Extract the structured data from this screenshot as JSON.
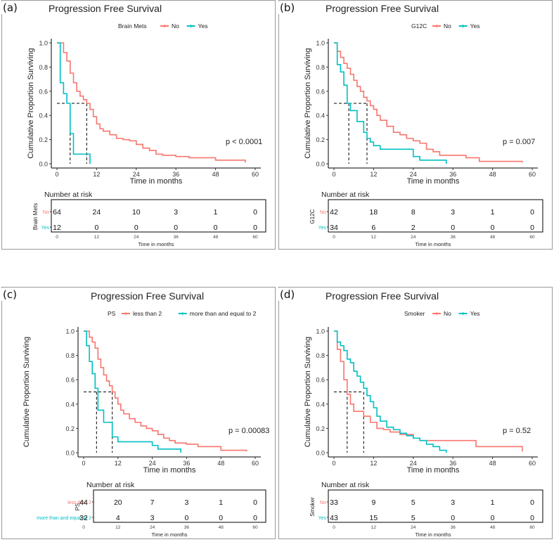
{
  "colors": {
    "no": "#f8766d",
    "yes": "#00bfc4",
    "axis": "#000000",
    "ink": "#222222"
  },
  "chart_data": [
    {
      "type": "line",
      "panel_label": "(a)",
      "title": "Progression Free Survival",
      "legend": {
        "title": "Brain Mets",
        "position": "top",
        "entries": [
          "No",
          "Yes"
        ]
      },
      "xlabel": "Time in months",
      "ylabel": "Cumulative Proportion Surviving",
      "xlim": [
        0,
        60
      ],
      "ylim": [
        0,
        1
      ],
      "xticks": [
        "0",
        "12",
        "24",
        "36",
        "48",
        "60"
      ],
      "yticks": [
        "0.0",
        "0.2",
        "0.4",
        "0.6",
        "0.8",
        "1.0"
      ],
      "pvalue": "p < 0.0001",
      "median_line": {
        "y": 0.5,
        "x": [
          4,
          9
        ]
      },
      "series": [
        {
          "name": "No",
          "color": "#f8766d",
          "x": [
            0,
            2,
            3,
            4,
            5,
            6,
            7,
            8,
            9,
            10,
            11,
            12,
            13,
            14,
            16,
            18,
            20,
            22,
            24,
            26,
            28,
            30,
            32,
            36,
            40,
            48,
            57
          ],
          "y": [
            1,
            0.92,
            0.85,
            0.75,
            0.67,
            0.6,
            0.56,
            0.53,
            0.5,
            0.45,
            0.39,
            0.33,
            0.29,
            0.27,
            0.24,
            0.21,
            0.2,
            0.19,
            0.16,
            0.13,
            0.11,
            0.08,
            0.07,
            0.06,
            0.05,
            0.03,
            0.01
          ]
        },
        {
          "name": "Yes",
          "color": "#00bfc4",
          "x": [
            0,
            1,
            2,
            3,
            4,
            5,
            10
          ],
          "y": [
            1,
            0.67,
            0.58,
            0.5,
            0.25,
            0.08,
            0
          ]
        }
      ],
      "risk_table": {
        "title": "Number at risk",
        "strata_label": "Brain Mets",
        "rows": [
          {
            "label": "No",
            "values": [
              "64",
              "24",
              "10",
              "3",
              "1",
              "0"
            ]
          },
          {
            "label": "Yes",
            "values": [
              "12",
              "0",
              "0",
              "0",
              "0",
              "0"
            ]
          }
        ],
        "xticks": [
          "0",
          "12",
          "24",
          "36",
          "48",
          "60"
        ],
        "xlabel": "Time in months"
      }
    },
    {
      "type": "line",
      "panel_label": "(b)",
      "title": "Progression Free Survival",
      "legend": {
        "title": "G12C",
        "position": "top",
        "entries": [
          "No",
          "Yes"
        ]
      },
      "xlabel": "Time in months",
      "ylabel": "Cumulative Proportion Surviving",
      "xlim": [
        0,
        60
      ],
      "ylim": [
        0,
        1
      ],
      "xticks": [
        "0",
        "12",
        "24",
        "36",
        "48",
        "60"
      ],
      "yticks": [
        "0.0",
        "0.2",
        "0.4",
        "0.6",
        "0.8",
        "1.0"
      ],
      "pvalue": "p = 0.007",
      "median_line": {
        "y": 0.5,
        "x": [
          4.5,
          10
        ]
      },
      "series": [
        {
          "name": "No",
          "color": "#f8766d",
          "x": [
            0,
            1,
            2,
            3,
            4,
            5,
            6,
            7,
            8,
            9,
            10,
            11,
            12,
            13,
            14,
            16,
            18,
            20,
            22,
            24,
            26,
            28,
            30,
            32,
            36,
            40,
            44,
            57
          ],
          "y": [
            1,
            0.93,
            0.88,
            0.83,
            0.79,
            0.74,
            0.69,
            0.64,
            0.6,
            0.55,
            0.52,
            0.48,
            0.45,
            0.4,
            0.36,
            0.31,
            0.26,
            0.24,
            0.21,
            0.19,
            0.17,
            0.12,
            0.1,
            0.07,
            0.07,
            0.05,
            0.02,
            0.01
          ]
        },
        {
          "name": "Yes",
          "color": "#00bfc4",
          "x": [
            0,
            1,
            2,
            3,
            4,
            5,
            7,
            9,
            10,
            11,
            12,
            14,
            16,
            22,
            24,
            26,
            34
          ],
          "y": [
            1,
            0.82,
            0.76,
            0.65,
            0.5,
            0.44,
            0.35,
            0.26,
            0.21,
            0.18,
            0.15,
            0.12,
            0.12,
            0.12,
            0.06,
            0.03,
            0
          ]
        }
      ],
      "risk_table": {
        "title": "Number at risk",
        "strata_label": "G12C",
        "rows": [
          {
            "label": "No",
            "values": [
              "42",
              "18",
              "8",
              "3",
              "1",
              "0"
            ]
          },
          {
            "label": "Yes",
            "values": [
              "34",
              "6",
              "2",
              "0",
              "0",
              "0"
            ]
          }
        ],
        "xticks": [
          "0",
          "12",
          "24",
          "36",
          "48",
          "60"
        ],
        "xlabel": "Time in months"
      }
    },
    {
      "type": "line",
      "panel_label": "(c)",
      "title": "Progression Free Survival",
      "legend": {
        "title": "PS",
        "position": "top",
        "entries": [
          "less than 2",
          "more than and equal to 2"
        ]
      },
      "xlabel": "Time in months",
      "ylabel": "Cumulative Proportion Surviving",
      "xlim": [
        0,
        60
      ],
      "ylim": [
        0,
        1
      ],
      "xticks": [
        "0",
        "12",
        "24",
        "36",
        "48",
        "60"
      ],
      "yticks": [
        "0.0",
        "0.2",
        "0.4",
        "0.6",
        "0.8",
        "1.0"
      ],
      "pvalue": "p = 0.00083",
      "median_line": {
        "y": 0.5,
        "x": [
          4.5,
          10
        ]
      },
      "series": [
        {
          "name": "less than 2",
          "color": "#f8766d",
          "x": [
            0,
            2,
            3,
            4,
            5,
            6,
            7,
            8,
            9,
            10,
            11,
            12,
            13,
            14,
            16,
            18,
            20,
            22,
            24,
            26,
            28,
            30,
            32,
            36,
            40,
            48,
            57
          ],
          "y": [
            1,
            0.95,
            0.91,
            0.86,
            0.77,
            0.7,
            0.64,
            0.59,
            0.55,
            0.5,
            0.45,
            0.4,
            0.35,
            0.32,
            0.28,
            0.25,
            0.22,
            0.2,
            0.18,
            0.15,
            0.12,
            0.1,
            0.08,
            0.07,
            0.05,
            0.02,
            0.01
          ]
        },
        {
          "name": "more than and equal to 2",
          "color": "#00bfc4",
          "x": [
            0,
            1,
            2,
            3,
            4,
            5,
            7,
            9,
            10,
            12,
            14,
            22,
            24,
            26,
            34
          ],
          "y": [
            1,
            0.88,
            0.75,
            0.65,
            0.53,
            0.35,
            0.25,
            0.25,
            0.13,
            0.09,
            0.09,
            0.09,
            0.06,
            0.03,
            0
          ]
        }
      ],
      "risk_table": {
        "title": "Number at risk",
        "strata_label": "PS",
        "rows": [
          {
            "label": "less than 2",
            "values": [
              "44",
              "20",
              "7",
              "3",
              "1",
              "0"
            ]
          },
          {
            "label": "more than and equal to 2",
            "values": [
              "32",
              "4",
              "3",
              "0",
              "0",
              "0"
            ]
          }
        ],
        "xticks": [
          "0",
          "12",
          "24",
          "36",
          "48",
          "60"
        ],
        "xlabel": "Time in months"
      }
    },
    {
      "type": "line",
      "panel_label": "(d)",
      "title": "Progression Free Survival",
      "legend": {
        "title": "Smoker",
        "position": "top",
        "entries": [
          "No",
          "Yes"
        ]
      },
      "xlabel": "Time in months",
      "ylabel": "Cumulative Proportion Surviving",
      "xlim": [
        0,
        60
      ],
      "ylim": [
        0,
        1
      ],
      "xticks": [
        "0",
        "12",
        "24",
        "36",
        "48",
        "60"
      ],
      "yticks": [
        "0.0",
        "0.2",
        "0.4",
        "0.6",
        "0.8",
        "1.0"
      ],
      "pvalue": "p = 0.52",
      "median_line": {
        "y": 0.5,
        "x": [
          4,
          9
        ]
      },
      "series": [
        {
          "name": "No",
          "color": "#f8766d",
          "x": [
            0,
            1,
            2,
            3,
            4,
            5,
            6,
            9,
            11,
            13,
            15,
            17,
            20,
            24,
            26,
            30,
            32,
            34,
            43,
            57
          ],
          "y": [
            1,
            0.85,
            0.75,
            0.6,
            0.48,
            0.4,
            0.34,
            0.3,
            0.25,
            0.2,
            0.19,
            0.17,
            0.15,
            0.12,
            0.1,
            0.1,
            0.1,
            0.1,
            0.05,
            0.01
          ]
        },
        {
          "name": "Yes",
          "color": "#00bfc4",
          "x": [
            0,
            1,
            2,
            3,
            4,
            5,
            6,
            7,
            8,
            9,
            10,
            11,
            12,
            13,
            14,
            16,
            18,
            20,
            22,
            24,
            26,
            28,
            30,
            32,
            34
          ],
          "y": [
            1,
            0.91,
            0.88,
            0.84,
            0.77,
            0.74,
            0.67,
            0.63,
            0.58,
            0.53,
            0.47,
            0.42,
            0.37,
            0.3,
            0.26,
            0.21,
            0.19,
            0.16,
            0.14,
            0.12,
            0.1,
            0.07,
            0.05,
            0.02,
            0
          ]
        }
      ],
      "risk_table": {
        "title": "Number at risk",
        "strata_label": "Smoker",
        "rows": [
          {
            "label": "No",
            "values": [
              "33",
              "9",
              "5",
              "3",
              "1",
              "0"
            ]
          },
          {
            "label": "Yes",
            "values": [
              "43",
              "15",
              "5",
              "0",
              "0",
              "0"
            ]
          }
        ],
        "xticks": [
          "0",
          "12",
          "24",
          "36",
          "48",
          "60"
        ],
        "xlabel": "Time in months"
      }
    }
  ]
}
